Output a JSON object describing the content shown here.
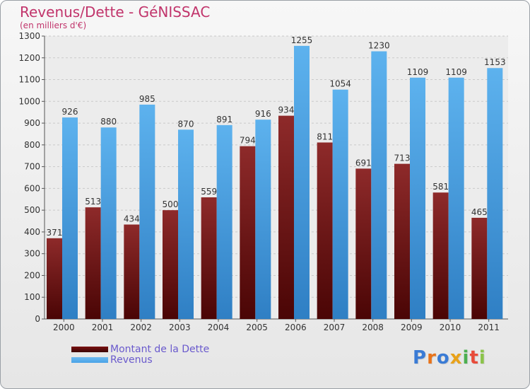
{
  "header": {
    "title": "Revenus/Dette - GéNISSAC",
    "subtitle": "(en milliers d'€)"
  },
  "legend": {
    "items": [
      {
        "label": "Montant de la Dette",
        "color": "#7a1010"
      },
      {
        "label": "Revenus",
        "color": "#4aa3e8"
      }
    ]
  },
  "logo": {
    "letters": [
      {
        "ch": "P",
        "color": "#3a7bd5"
      },
      {
        "ch": "r",
        "color": "#e8731a"
      },
      {
        "ch": "o",
        "color": "#3a7bd5"
      },
      {
        "ch": "x",
        "color": "#e8a21a"
      },
      {
        "ch": "i",
        "color": "#4caf50"
      },
      {
        "ch": "t",
        "color": "#e84b3a"
      },
      {
        "ch": "i",
        "color": "#8bc34a"
      }
    ]
  },
  "chart_data": {
    "type": "bar",
    "title": "Revenus/Dette - GéNISSAC",
    "ylabel": "(en milliers d'€)",
    "xlabel": "",
    "categories": [
      "2000",
      "2001",
      "2002",
      "2003",
      "2004",
      "2005",
      "2006",
      "2007",
      "2008",
      "2009",
      "2010",
      "2011"
    ],
    "series": [
      {
        "name": "Montant de la Dette",
        "color": "#7a1010",
        "values": [
          371,
          513,
          434,
          500,
          559,
          794,
          934,
          811,
          691,
          713,
          581,
          465
        ]
      },
      {
        "name": "Revenus",
        "color": "#4aa3e8",
        "values": [
          926,
          880,
          985,
          870,
          891,
          916,
          1255,
          1054,
          1230,
          1109,
          1109,
          1153
        ]
      }
    ],
    "ylim": [
      0,
      1300
    ],
    "yticks": [
      0,
      100,
      200,
      300,
      400,
      500,
      600,
      700,
      800,
      900,
      1000,
      1100,
      1200,
      1300
    ],
    "grid": true,
    "legend_position": "bottom-left"
  }
}
